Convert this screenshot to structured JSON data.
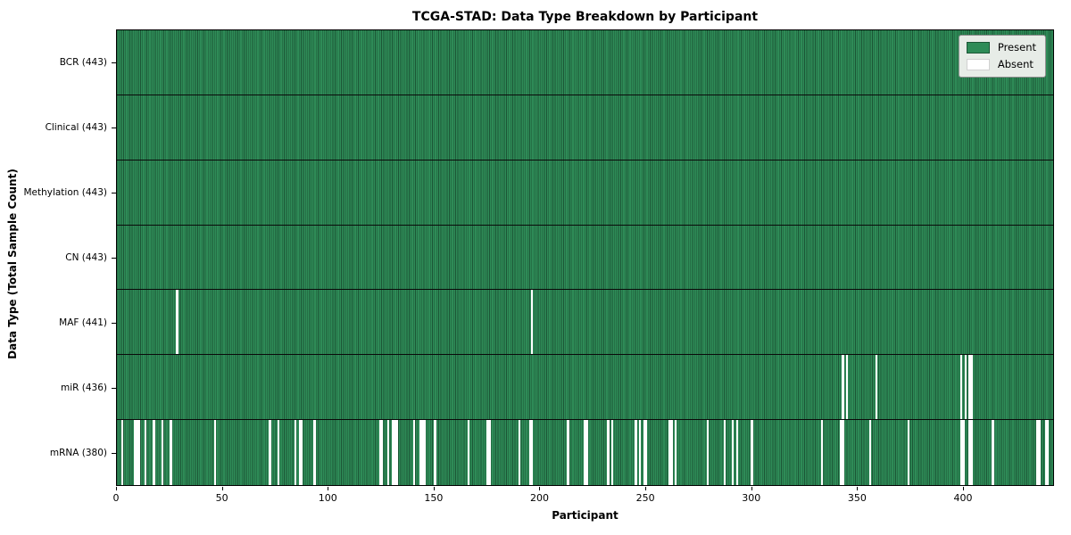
{
  "colors": {
    "present": "#2e8b57",
    "absent": "#ffffff",
    "edge": "#1c5636",
    "legend_bg": "#e7ece7",
    "legend_border": "#8f8f8f"
  },
  "chart_data": {
    "type": "heatmap",
    "title": "TCGA-STAD: Data Type Breakdown by Participant",
    "xlabel": "Participant",
    "ylabel": "Data Type (Total Sample Count)",
    "legend_position": "upper right",
    "grid": false,
    "n_participants": 443,
    "xlim": [
      0,
      443
    ],
    "x_ticks": [
      0,
      50,
      100,
      150,
      200,
      250,
      300,
      350,
      400
    ],
    "legend": [
      {
        "label": "Present",
        "color": "#2e8b57"
      },
      {
        "label": "Absent",
        "color": "#ffffff"
      }
    ],
    "rows": [
      {
        "label": "BCR (443)",
        "data_type": "BCR",
        "count": 443,
        "absent": []
      },
      {
        "label": "Clinical (443)",
        "data_type": "Clinical",
        "count": 443,
        "absent": []
      },
      {
        "label": "Methylation (443)",
        "data_type": "Methylation",
        "count": 443,
        "absent": []
      },
      {
        "label": "CN (443)",
        "data_type": "CN",
        "count": 443,
        "absent": []
      },
      {
        "label": "MAF (441)",
        "data_type": "MAF",
        "count": 441,
        "absent": [
          28,
          196
        ]
      },
      {
        "label": "miR (436)",
        "data_type": "miR",
        "count": 436,
        "absent": [
          343,
          345,
          359,
          399,
          401,
          403,
          404
        ]
      },
      {
        "label": "mRNA (380)",
        "data_type": "mRNA",
        "count": 380,
        "absent": [
          2,
          8,
          9,
          10,
          13,
          17,
          21,
          25,
          46,
          72,
          76,
          84,
          86,
          87,
          93,
          124,
          125,
          128,
          130,
          131,
          132,
          140,
          143,
          144,
          145,
          150,
          166,
          175,
          176,
          190,
          195,
          196,
          213,
          221,
          222,
          232,
          234,
          245,
          247,
          249,
          250,
          261,
          262,
          264,
          279,
          287,
          291,
          293,
          300,
          333,
          342,
          343,
          356,
          374,
          399,
          400,
          403,
          404,
          414,
          435,
          436,
          439,
          440
        ]
      }
    ]
  }
}
